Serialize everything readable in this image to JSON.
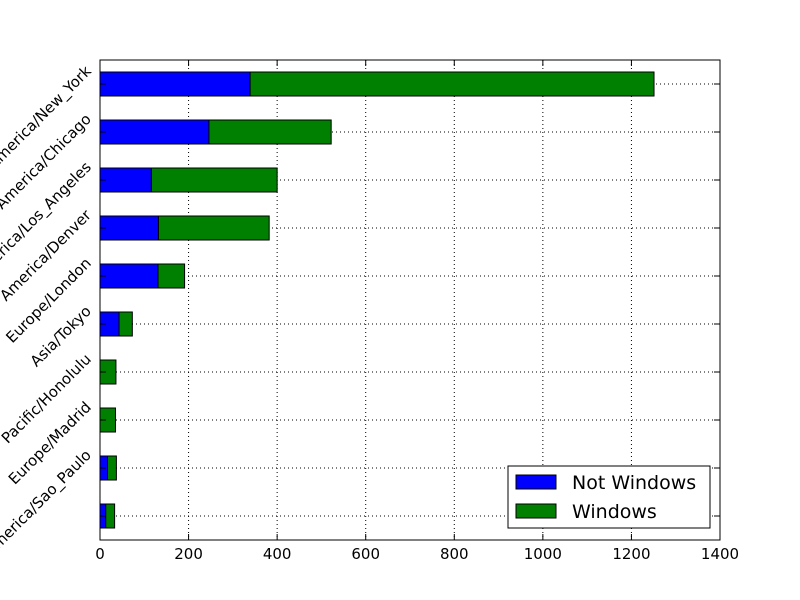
{
  "chart_data": {
    "type": "bar",
    "orientation": "horizontal",
    "stacked": true,
    "categories": [
      "America/New_York",
      "America/Chicago",
      "America/Los_Angeles",
      "America/Denver",
      "Europe/London",
      "Asia/Tokyo",
      "Pacific/Honolulu",
      "Europe/Madrid",
      "America/Sao_Paulo",
      "America/Sao_Paulo"
    ],
    "category_labels": [
      "America/New_York",
      "America/Chicago",
      "America/Los_Angeles",
      "America/Denver",
      "Europe/London",
      "Asia/Tokyo",
      "Pacific/Honolulu",
      "Europe/Madrid",
      "America/Sao_Paulo",
      ""
    ],
    "series": [
      {
        "name": "Not Windows",
        "color": "#0000ff",
        "values": [
          339,
          246,
          116,
          132,
          131,
          43,
          0,
          0,
          17,
          13
        ]
      },
      {
        "name": "Windows",
        "color": "#008000",
        "values": [
          912,
          276,
          284,
          250,
          60,
          30,
          36,
          35,
          20,
          20
        ]
      }
    ],
    "title": "",
    "xlabel": "",
    "ylabel": "",
    "xlim": [
      0,
      1400
    ],
    "x_ticks": [
      "0",
      "200",
      "400",
      "600",
      "800",
      "1000",
      "1200",
      "1400"
    ],
    "grid": true,
    "legend_position": "lower-right"
  }
}
